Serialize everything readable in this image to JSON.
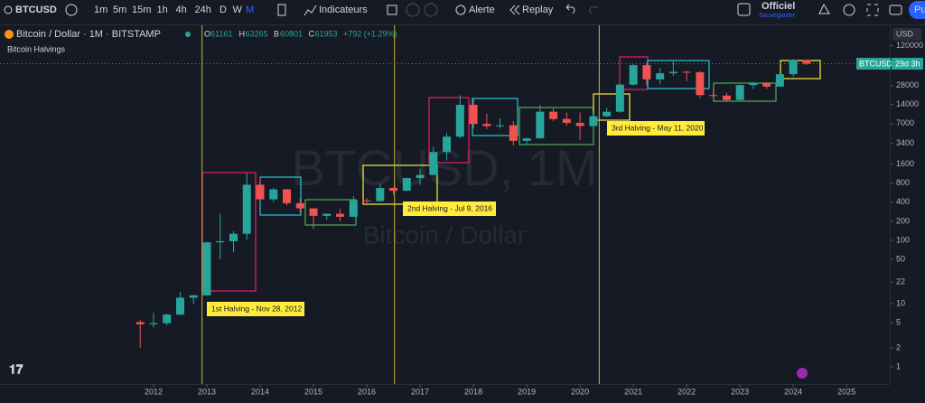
{
  "toolbar": {
    "symbol": "BTCUSD",
    "intervals": [
      "1m",
      "5m",
      "15m",
      "1h",
      "4h",
      "24h",
      "D",
      "W",
      "M"
    ],
    "active_interval": 8,
    "indicators": "Indicateurs",
    "alert": "Alerte",
    "replay": "Replay",
    "layout_name": "Officiel",
    "save": "Sauvegarder",
    "publish": "Pu"
  },
  "chart": {
    "type": "candlestick",
    "description": "Bitcoin / Dollar · 1M · BITSTAMP",
    "indicator": "Bitcoin Halvings",
    "watermark": "BTCUSD, 1M",
    "watermark_sub": "Bitcoin / Dollar",
    "currency": "USD",
    "ohlc": [
      {
        "label": "O",
        "value": 61161
      },
      {
        "label": "H",
        "value": 63265
      },
      {
        "label": "B",
        "value": 60801
      },
      {
        "label": "C",
        "value": 61953
      }
    ],
    "change": "+792 (+1.29%)",
    "badge_symbol": "BTCUSD",
    "countdown": "29d 3h",
    "last": 61953,
    "log_scale": true,
    "up_color": "#26a69a",
    "down_color": "#ef5350",
    "xlim": [
      2009.12,
      2025.81
    ],
    "ylim": [
      0.535,
      251000
    ],
    "xticks": [
      2012,
      2013,
      2014,
      2015,
      2016,
      2017,
      2018,
      2019,
      2020,
      2021,
      2022,
      2023,
      2024,
      2025
    ],
    "yticks": [
      120000,
      28000,
      14000,
      7000,
      3400,
      1600,
      800,
      400,
      200,
      100,
      50,
      22,
      10,
      5,
      2,
      1
    ],
    "halvings": [
      {
        "x": 2012.91,
        "label": "1st Halving - Nov 28, 2012"
      },
      {
        "x": 2016.52,
        "label": "2nd Halving - Jul 9, 2016"
      },
      {
        "x": 2020.36,
        "label": "3rd Halving - May 11, 2020"
      }
    ],
    "x": [
      2011.75,
      2012.0,
      2012.25,
      2012.5,
      2012.75,
      2013.0,
      2013.25,
      2013.5,
      2013.75,
      2014.0,
      2014.25,
      2014.5,
      2014.75,
      2015.0,
      2015.25,
      2015.5,
      2015.75,
      2016.0,
      2016.25,
      2016.5,
      2016.75,
      2017.0,
      2017.25,
      2017.5,
      2017.75,
      2018.0,
      2018.25,
      2018.5,
      2018.75,
      2019.0,
      2019.25,
      2019.5,
      2019.75,
      2020.0,
      2020.25,
      2020.5,
      2020.75,
      2021.0,
      2021.25,
      2021.5,
      2021.75,
      2022.0,
      2022.25,
      2022.5,
      2022.75,
      2023.0,
      2023.25,
      2023.5,
      2023.75,
      2024.0,
      2024.25
    ],
    "open": [
      5.1,
      4.7,
      4.9,
      6.7,
      12.4,
      13.5,
      93,
      97,
      127,
      757,
      445,
      640,
      387,
      320,
      244,
      263,
      236,
      430,
      416,
      673,
      608,
      964,
      1080,
      2490,
      4360,
      13880,
      6930,
      6400,
      6600,
      3740,
      4100,
      10800,
      8290,
      7200,
      6410,
      9140,
      10780,
      28990,
      58800,
      35040,
      43790,
      46200,
      45500,
      19780,
      19420,
      16540,
      28470,
      30470,
      26970,
      42280,
      71300
    ],
    "high": [
      5.5,
      7.2,
      6.9,
      15.4,
      13.8,
      95,
      266,
      140,
      1163,
      1000,
      680,
      650,
      455,
      320,
      265,
      317,
      502,
      465,
      780,
      685,
      980,
      1350,
      3000,
      5000,
      19700,
      17200,
      9990,
      8500,
      7700,
      4200,
      13880,
      12300,
      10500,
      10500,
      10430,
      12470,
      29300,
      61800,
      64900,
      52900,
      69000,
      48200,
      47400,
      25200,
      21480,
      29200,
      31800,
      31800,
      44700,
      73800,
      72000
    ],
    "low": [
      2,
      4.2,
      4.5,
      6.6,
      9.8,
      13.3,
      50,
      65,
      102,
      420,
      400,
      355,
      275,
      152,
      212,
      200,
      235,
      355,
      415,
      530,
      605,
      750,
      1060,
      1830,
      4100,
      5900,
      5750,
      5860,
      3130,
      3350,
      4060,
      7700,
      6500,
      3850,
      6150,
      8930,
      10380,
      28130,
      28800,
      29300,
      40000,
      32900,
      17600,
      17700,
      15480,
      16500,
      24770,
      24900,
      26560,
      38500,
      59000
    ],
    "close": [
      4.7,
      4.9,
      6.7,
      12.4,
      13.5,
      93,
      97,
      127,
      757,
      445,
      640,
      387,
      320,
      244,
      263,
      236,
      430,
      416,
      673,
      608,
      964,
      1080,
      2490,
      4360,
      13880,
      6930,
      6400,
      6600,
      3740,
      4100,
      10800,
      8290,
      7200,
      6410,
      9140,
      10780,
      28990,
      58800,
      35040,
      43790,
      46200,
      45500,
      19780,
      19420,
      16540,
      28470,
      30470,
      26970,
      42280,
      71300,
      61953
    ]
  }
}
